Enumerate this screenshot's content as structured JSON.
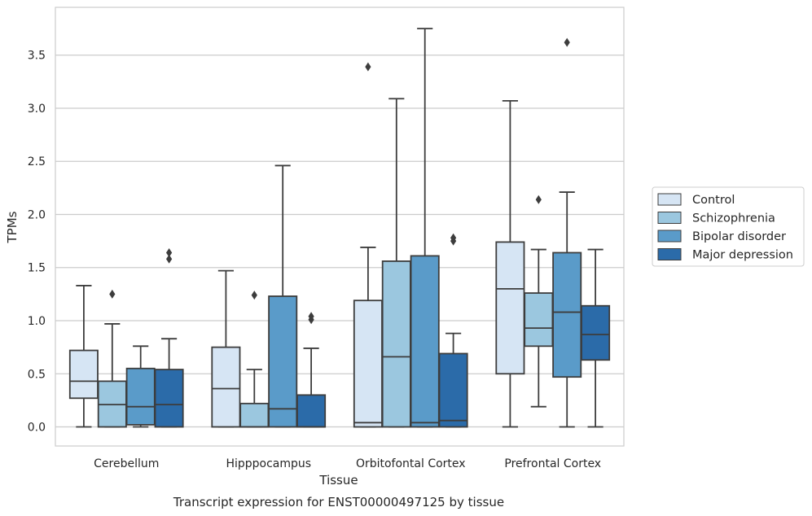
{
  "chart_data": {
    "type": "boxplot",
    "xlabel": "Tissue",
    "ylabel": "TPMs",
    "caption": "Transcript expression for ENST00000497125 by tissue",
    "ylim": [
      -0.18,
      3.95
    ],
    "yticks": [
      "0.0",
      "0.5",
      "1.0",
      "1.5",
      "2.0",
      "2.5",
      "3.0",
      "3.5"
    ],
    "ytick_values": [
      0.0,
      0.5,
      1.0,
      1.5,
      2.0,
      2.5,
      3.0,
      3.5
    ],
    "grid": "horizontal",
    "legend_position": "right",
    "categories": [
      "Cerebellum",
      "Hipppocampus",
      "Orbitofontal Cortex",
      "Prefrontal Cortex"
    ],
    "series": [
      {
        "name": "Control",
        "color": "#d6e5f4",
        "boxes": [
          {
            "whislo": 0.0,
            "q1": 0.27,
            "med": 0.43,
            "q3": 0.72,
            "whishi": 1.33,
            "fliers": []
          },
          {
            "whislo": 0.0,
            "q1": 0.0,
            "med": 0.36,
            "q3": 0.75,
            "whishi": 1.47,
            "fliers": []
          },
          {
            "whislo": 0.0,
            "q1": 0.0,
            "med": 0.04,
            "q3": 1.19,
            "whishi": 1.69,
            "fliers": [
              3.39
            ]
          },
          {
            "whislo": 0.0,
            "q1": 0.5,
            "med": 1.3,
            "q3": 1.74,
            "whishi": 3.07,
            "fliers": []
          }
        ]
      },
      {
        "name": "Schizophrenia",
        "color": "#9bc7df",
        "boxes": [
          {
            "whislo": 0.0,
            "q1": 0.0,
            "med": 0.21,
            "q3": 0.43,
            "whishi": 0.97,
            "fliers": [
              1.25
            ]
          },
          {
            "whislo": 0.0,
            "q1": 0.0,
            "med": 0.0,
            "q3": 0.22,
            "whishi": 0.54,
            "fliers": [
              1.24
            ]
          },
          {
            "whislo": 0.0,
            "q1": 0.0,
            "med": 0.66,
            "q3": 1.56,
            "whishi": 3.09,
            "fliers": []
          },
          {
            "whislo": 0.19,
            "q1": 0.76,
            "med": 0.93,
            "q3": 1.26,
            "whishi": 1.67,
            "fliers": [
              2.14
            ]
          }
        ]
      },
      {
        "name": "Bipolar disorder",
        "color": "#5a9bc9",
        "boxes": [
          {
            "whislo": 0.0,
            "q1": 0.02,
            "med": 0.19,
            "q3": 0.55,
            "whishi": 0.76,
            "fliers": []
          },
          {
            "whislo": 0.0,
            "q1": 0.0,
            "med": 0.17,
            "q3": 1.23,
            "whishi": 2.46,
            "fliers": []
          },
          {
            "whislo": 0.0,
            "q1": 0.0,
            "med": 0.04,
            "q3": 1.61,
            "whishi": 3.75,
            "fliers": []
          },
          {
            "whislo": 0.0,
            "q1": 0.47,
            "med": 1.08,
            "q3": 1.64,
            "whishi": 2.21,
            "fliers": [
              3.62
            ]
          }
        ]
      },
      {
        "name": "Major depression",
        "color": "#2b6ba9",
        "boxes": [
          {
            "whislo": 0.0,
            "q1": 0.0,
            "med": 0.21,
            "q3": 0.54,
            "whishi": 0.83,
            "fliers": [
              1.58,
              1.64
            ]
          },
          {
            "whislo": 0.0,
            "q1": 0.0,
            "med": 0.0,
            "q3": 0.3,
            "whishi": 0.74,
            "fliers": [
              1.01,
              1.04
            ]
          },
          {
            "whislo": 0.0,
            "q1": 0.0,
            "med": 0.06,
            "q3": 0.69,
            "whishi": 0.88,
            "fliers": [
              1.75,
              1.78
            ]
          },
          {
            "whislo": 0.0,
            "q1": 0.63,
            "med": 0.87,
            "q3": 1.14,
            "whishi": 1.67,
            "fliers": []
          }
        ]
      }
    ]
  }
}
